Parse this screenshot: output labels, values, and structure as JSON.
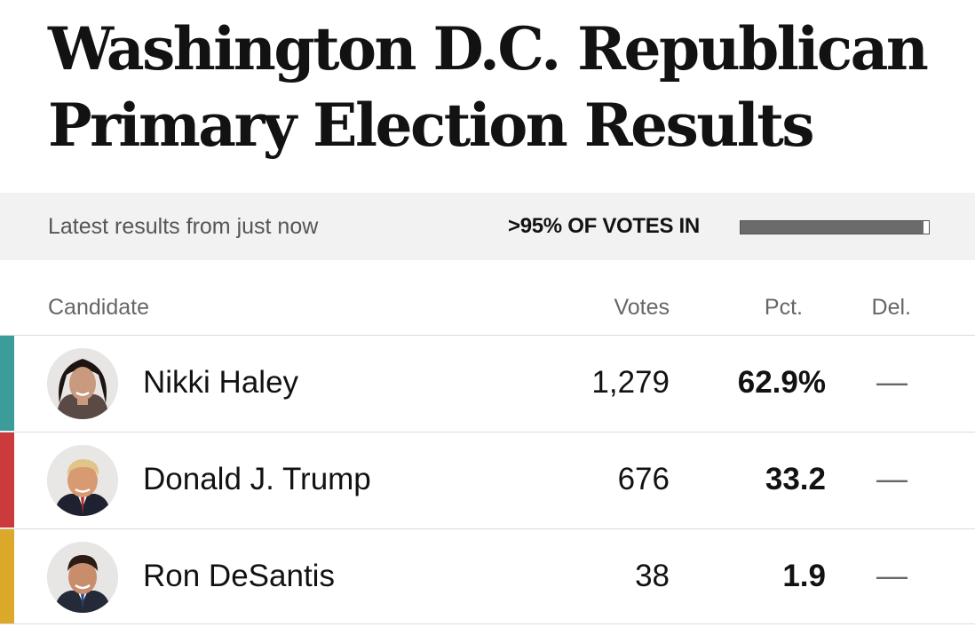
{
  "title": "Washington D.C. Republican Primary Election Results",
  "status": {
    "updated": "Latest results from just now",
    "votes_in_label": ">95% OF VOTES IN",
    "votes_in_fraction": 0.97
  },
  "table": {
    "headers": {
      "candidate": "Candidate",
      "votes": "Votes",
      "pct": "Pct.",
      "del": "Del."
    },
    "rows": [
      {
        "name": "Nikki Haley",
        "votes": "1,279",
        "pct": "62.9%",
        "del": "—",
        "color": "#3c9c99",
        "avatar": "nikki-haley-avatar"
      },
      {
        "name": "Donald J. Trump",
        "votes": "676",
        "pct": "33.2",
        "del": "—",
        "color": "#cb3b3b",
        "avatar": "donald-trump-avatar"
      },
      {
        "name": "Ron DeSantis",
        "votes": "38",
        "pct": "1.9",
        "del": "—",
        "color": "#dba82a",
        "avatar": "ron-desantis-avatar"
      }
    ]
  }
}
